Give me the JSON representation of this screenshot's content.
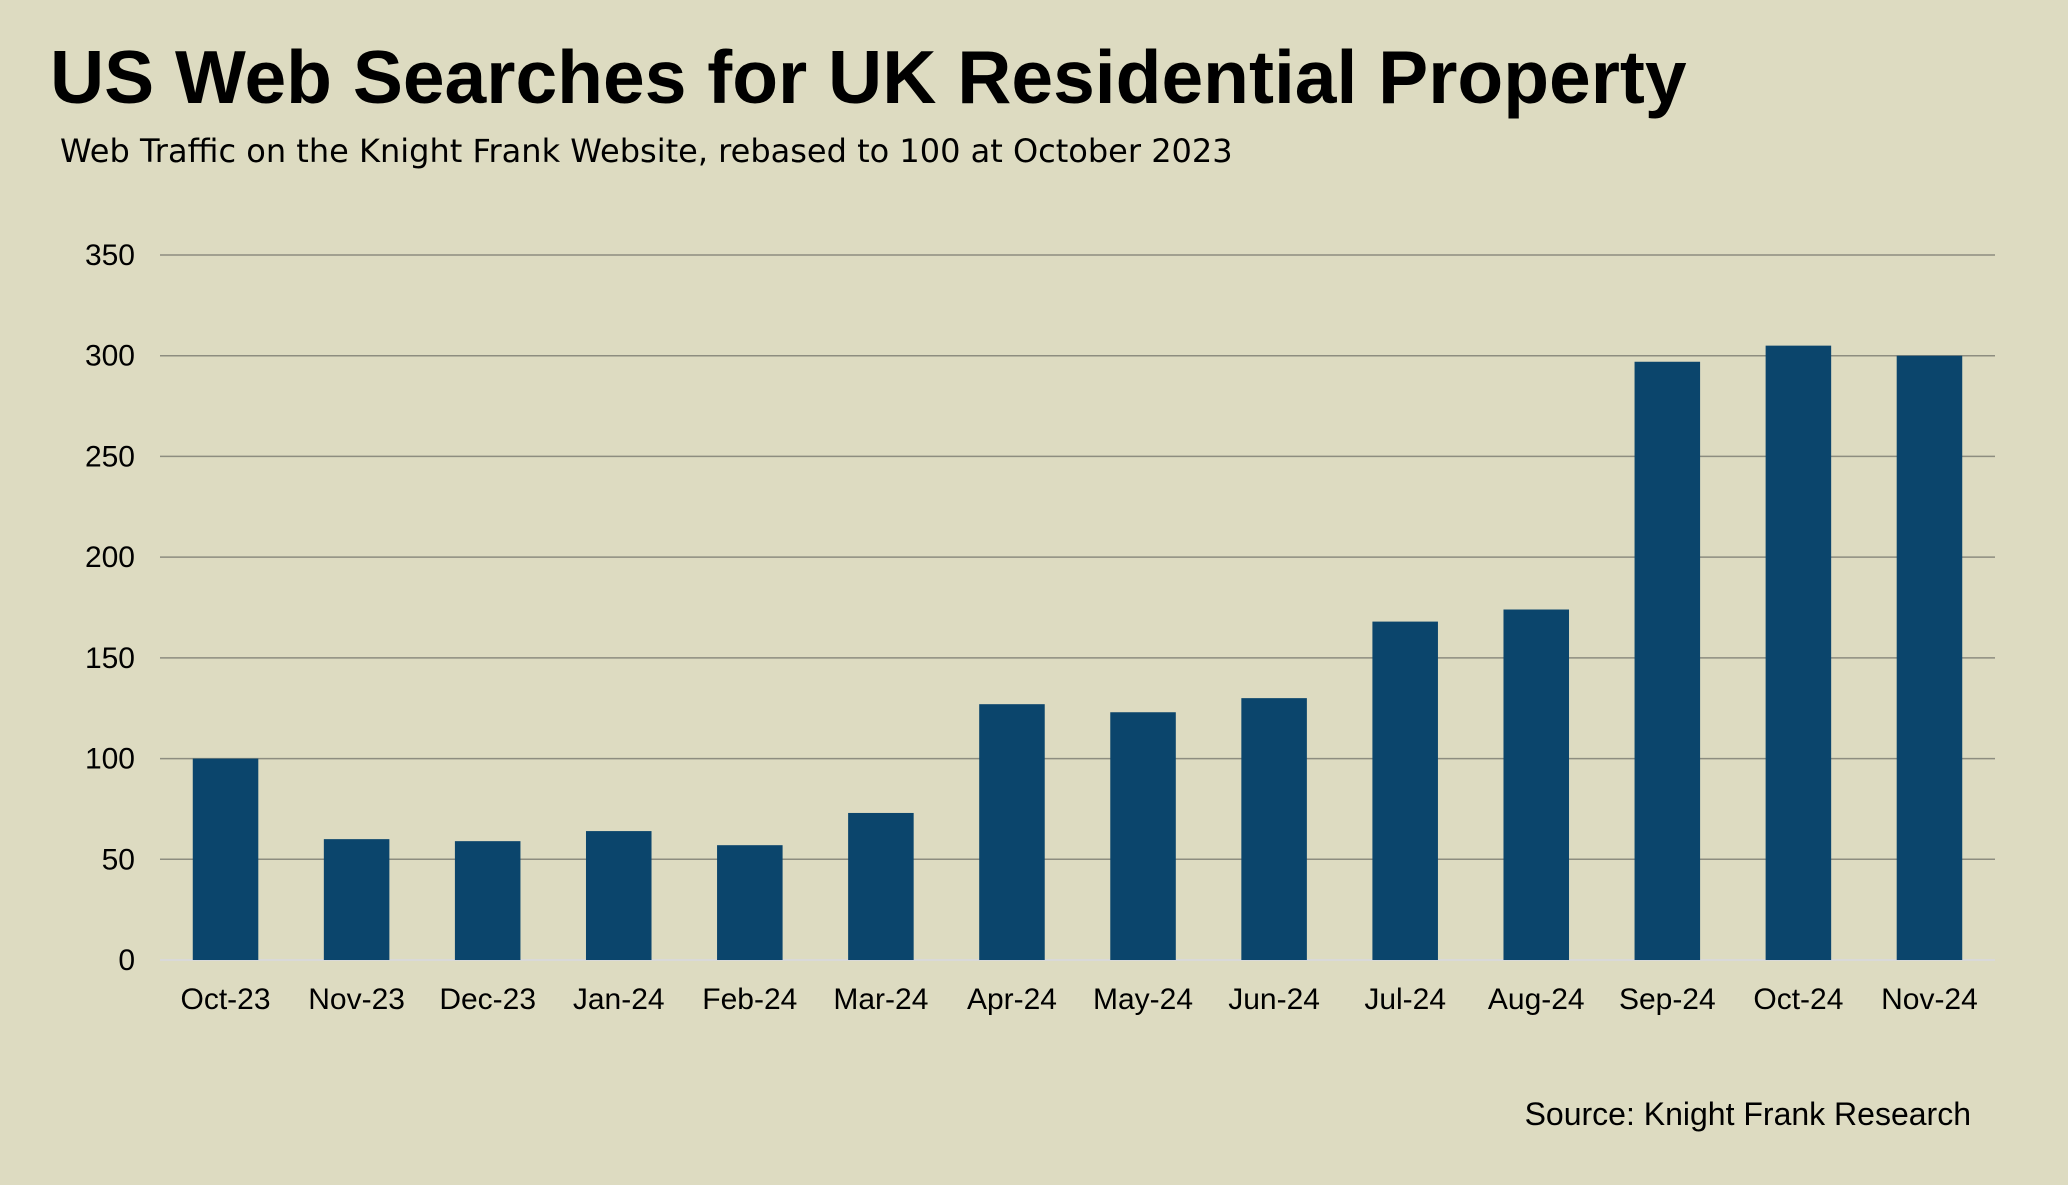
{
  "chart_data": {
    "type": "bar",
    "title": "US Web Searches for UK Residential Property",
    "subtitle": "Web Traffic on the Knight Frank Website, rebased to 100 at October 2023",
    "source": "Source: Knight Frank Research",
    "categories": [
      "Oct-23",
      "Nov-23",
      "Dec-23",
      "Jan-24",
      "Feb-24",
      "Mar-24",
      "Apr-24",
      "May-24",
      "Jun-24",
      "Jul-24",
      "Aug-24",
      "Sep-24",
      "Oct-24",
      "Nov-24"
    ],
    "values": [
      100,
      60,
      59,
      64,
      57,
      73,
      127,
      123,
      130,
      168,
      174,
      297,
      305,
      300
    ],
    "ylim": [
      0,
      350
    ],
    "yticks": [
      "0",
      "50",
      "100",
      "150",
      "200",
      "250",
      "300",
      "350"
    ],
    "xlabel": "",
    "ylabel": "",
    "grid": true,
    "bar_color": "#0b456c",
    "grid_color": "#8d8d80",
    "background_color": "#dddbc1"
  }
}
